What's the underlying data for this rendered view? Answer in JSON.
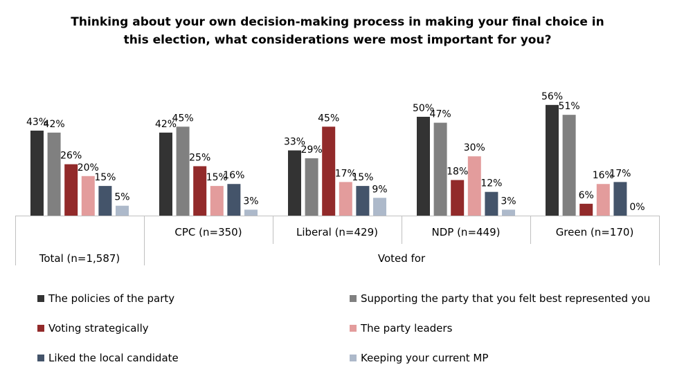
{
  "title_lines": [
    "Thinking about your own decision-making process in making your final choice in",
    "this election, what considerations were most important for you?"
  ],
  "chart_data": {
    "type": "bar",
    "title": "Thinking about your own decision-making process in making your final choice in this election, what considerations were most important for you?",
    "categories": [
      "Total (n=1,587)",
      "CPC (n=350)",
      "Liberal (n=429)",
      "NDP (n=449)",
      "Green (n=170)"
    ],
    "group_label": "Voted for",
    "series": [
      {
        "name": "The policies of the party",
        "color": "#333333",
        "values": [
          43,
          42,
          33,
          50,
          56
        ]
      },
      {
        "name": "Supporting the party that you felt best represented you",
        "color": "#808080",
        "values": [
          42,
          45,
          29,
          47,
          51
        ]
      },
      {
        "name": "Voting strategically",
        "color": "#922a2a",
        "values": [
          26,
          25,
          45,
          18,
          6
        ]
      },
      {
        "name": "The party leaders",
        "color": "#e39c9c",
        "values": [
          20,
          15,
          17,
          30,
          16
        ]
      },
      {
        "name": "Liked the local candidate",
        "color": "#44546a",
        "values": [
          15,
          16,
          15,
          12,
          17
        ]
      },
      {
        "name": "Keeping your current MP",
        "color": "#adb9ca",
        "values": [
          5,
          3,
          9,
          3,
          0
        ]
      }
    ],
    "value_suffix": "%",
    "legend_position": "bottom",
    "grid": false
  }
}
